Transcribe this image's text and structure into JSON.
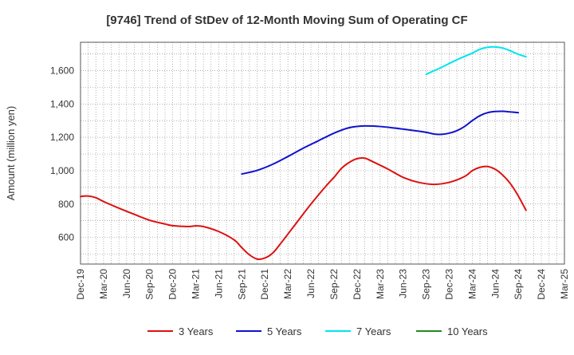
{
  "chart_data": {
    "type": "line",
    "title": "[9746]  Trend of StDev of 12-Month Moving Sum of Operating CF",
    "xlabel": "",
    "ylabel": "Amount (million yen)",
    "x_tick_labels": [
      "Dec-19",
      "Mar-20",
      "Jun-20",
      "Sep-20",
      "Dec-20",
      "Mar-21",
      "Jun-21",
      "Sep-21",
      "Dec-21",
      "Mar-22",
      "Jun-22",
      "Sep-22",
      "Dec-22",
      "Mar-23",
      "Jun-23",
      "Sep-23",
      "Dec-23",
      "Mar-24",
      "Jun-24",
      "Sep-24",
      "Dec-24",
      "Mar-25"
    ],
    "y_ticks": [
      600,
      800,
      1000,
      1200,
      1400,
      1600
    ],
    "y_tick_labels": [
      "600",
      "800",
      "1,000",
      "1,200",
      "1,400",
      "1,600"
    ],
    "ylim": [
      440,
      1770
    ],
    "grid": true,
    "legend_position": "bottom",
    "series": [
      {
        "name": "3 Years",
        "color": "#dd1111",
        "points": [
          [
            "Dec-19",
            845
          ],
          [
            "Jan-20",
            848
          ],
          [
            "Feb-20",
            838
          ],
          [
            "Mar-20",
            815
          ],
          [
            "May-20",
            775
          ],
          [
            "Jul-20",
            738
          ],
          [
            "Sep-20",
            703
          ],
          [
            "Nov-20",
            680
          ],
          [
            "Dec-20",
            670
          ],
          [
            "Feb-21",
            665
          ],
          [
            "Mar-21",
            669
          ],
          [
            "Apr-21",
            665
          ],
          [
            "Jun-21",
            635
          ],
          [
            "Aug-21",
            585
          ],
          [
            "Sep-21",
            538
          ],
          [
            "Oct-21",
            495
          ],
          [
            "Nov-21",
            470
          ],
          [
            "Dec-21",
            476
          ],
          [
            "Jan-22",
            505
          ],
          [
            "Feb-22",
            560
          ],
          [
            "Apr-22",
            680
          ],
          [
            "Jun-22",
            800
          ],
          [
            "Aug-22",
            910
          ],
          [
            "Sep-22",
            960
          ],
          [
            "Oct-22",
            1015
          ],
          [
            "Nov-22",
            1050
          ],
          [
            "Dec-22",
            1072
          ],
          [
            "Jan-23",
            1075
          ],
          [
            "Feb-23",
            1055
          ],
          [
            "Apr-23",
            1010
          ],
          [
            "Jun-23",
            960
          ],
          [
            "Aug-23",
            930
          ],
          [
            "Oct-23",
            918
          ],
          [
            "Dec-23",
            930
          ],
          [
            "Feb-24",
            965
          ],
          [
            "Mar-24",
            1000
          ],
          [
            "Apr-24",
            1020
          ],
          [
            "May-24",
            1025
          ],
          [
            "Jun-24",
            1008
          ],
          [
            "Jul-24",
            972
          ],
          [
            "Aug-24",
            920
          ],
          [
            "Sep-24",
            848
          ],
          [
            "Oct-24",
            762
          ]
        ]
      },
      {
        "name": "5 Years",
        "color": "#1111cc",
        "points": [
          [
            "Sep-21",
            980
          ],
          [
            "Nov-21",
            1002
          ],
          [
            "Jan-22",
            1038
          ],
          [
            "Mar-22",
            1085
          ],
          [
            "May-22",
            1135
          ],
          [
            "Jul-22",
            1180
          ],
          [
            "Sep-22",
            1225
          ],
          [
            "Nov-22",
            1258
          ],
          [
            "Jan-23",
            1268
          ],
          [
            "Mar-23",
            1265
          ],
          [
            "May-23",
            1255
          ],
          [
            "Jul-23",
            1243
          ],
          [
            "Sep-23",
            1230
          ],
          [
            "Oct-23",
            1220
          ],
          [
            "Nov-23",
            1218
          ],
          [
            "Dec-23",
            1225
          ],
          [
            "Jan-24",
            1240
          ],
          [
            "Feb-24",
            1265
          ],
          [
            "Mar-24",
            1300
          ],
          [
            "Apr-24",
            1330
          ],
          [
            "May-24",
            1348
          ],
          [
            "Jun-24",
            1355
          ],
          [
            "Jul-24",
            1356
          ],
          [
            "Aug-24",
            1352
          ],
          [
            "Sep-24",
            1348
          ]
        ]
      },
      {
        "name": "7 Years",
        "color": "#00e5ee",
        "points": [
          [
            "Sep-23",
            1578
          ],
          [
            "Nov-23",
            1620
          ],
          [
            "Jan-24",
            1665
          ],
          [
            "Mar-24",
            1705
          ],
          [
            "Apr-24",
            1728
          ],
          [
            "May-24",
            1740
          ],
          [
            "Jun-24",
            1742
          ],
          [
            "Jul-24",
            1735
          ],
          [
            "Aug-24",
            1718
          ],
          [
            "Sep-24",
            1698
          ],
          [
            "Oct-24",
            1683
          ]
        ]
      },
      {
        "name": "10 Years",
        "color": "#228822",
        "points": []
      }
    ]
  }
}
